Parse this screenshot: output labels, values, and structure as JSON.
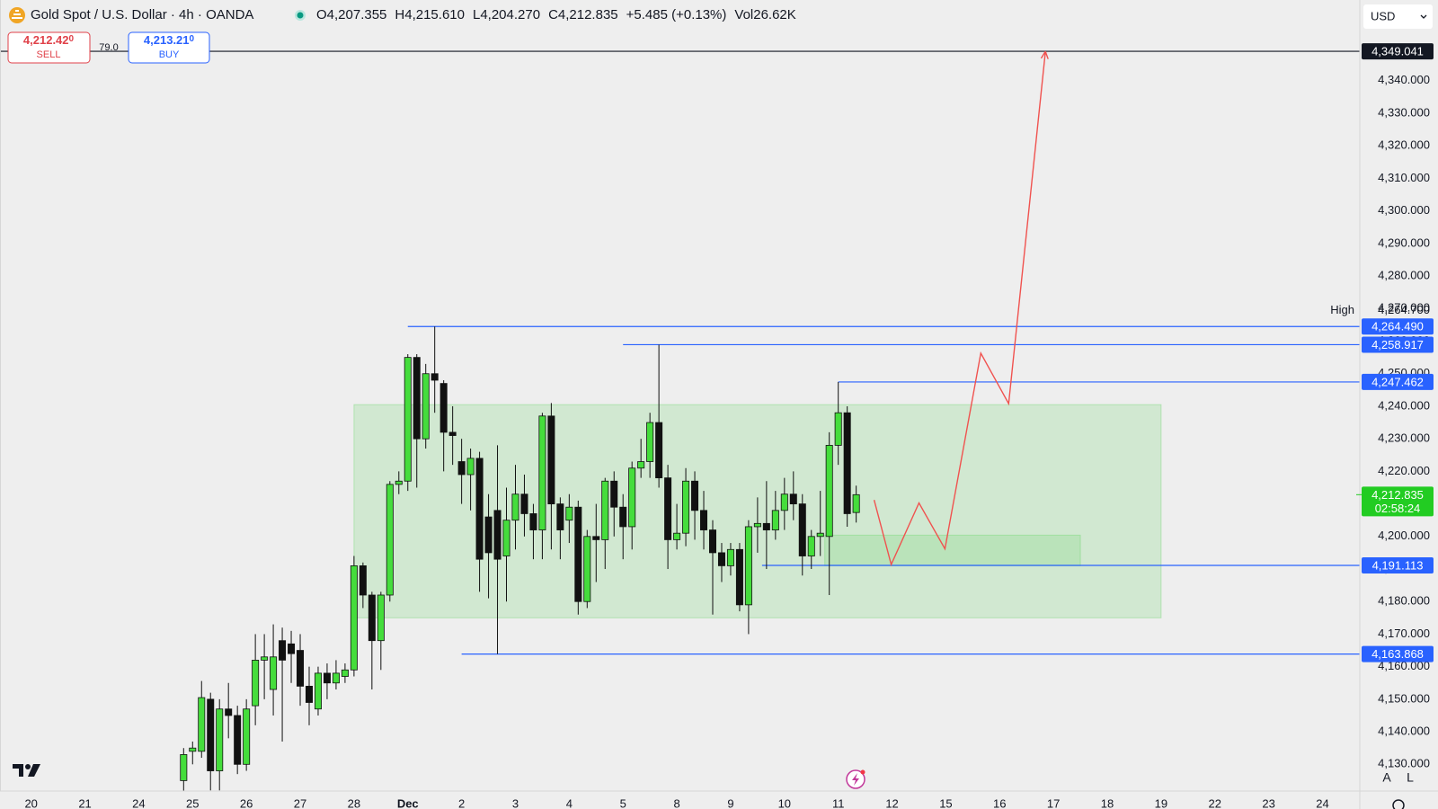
{
  "header": {
    "symbol": "Gold Spot / U.S. Dollar · 4h · OANDA",
    "open": "O4,207.355",
    "high": "H4,215.610",
    "low": "L4,204.270",
    "close": "C4,212.835",
    "change": "+5.485 (+0.13%)",
    "volume": "Vol26.62K"
  },
  "trade": {
    "sell_price": "4,212.42",
    "sell_fraction": "0",
    "sell_label": "SELL",
    "spread": "79.0",
    "buy_price": "4,213.21",
    "buy_fraction": "0",
    "buy_label": "BUY"
  },
  "currency": "USD",
  "footer": {
    "auto": "A",
    "log": "L"
  },
  "chart_data": {
    "type": "candlestick",
    "up_color": "#45dd3c",
    "down_color": "#111111",
    "grid": false,
    "x": [
      17,
      18,
      19,
      20,
      21,
      22,
      23,
      24,
      25,
      26,
      27,
      28,
      29,
      30,
      31,
      32,
      33,
      34,
      35,
      36,
      37,
      38,
      39,
      40,
      41,
      42,
      43,
      44,
      45,
      46,
      47,
      48,
      49,
      50,
      51,
      52,
      53,
      54,
      55,
      56,
      57,
      58,
      59,
      60,
      61,
      62,
      63,
      64,
      65,
      66,
      67,
      68,
      69,
      70,
      71,
      72,
      73,
      74,
      75,
      76,
      77,
      78,
      79,
      80,
      81,
      82,
      83,
      84,
      85,
      86,
      87,
      88,
      89,
      90,
      91,
      92
    ],
    "open": [
      4125,
      4134,
      4134,
      4150,
      4128,
      4147,
      4145,
      4130,
      4148,
      4162,
      4153,
      4168,
      4167,
      4165,
      4154,
      4147,
      4158,
      4155,
      4157,
      4159,
      4191,
      4182,
      4168,
      4182,
      4216,
      4217,
      4255,
      4230,
      4250,
      4247,
      4232,
      4223,
      4219,
      4224,
      4206,
      4208,
      4194,
      4205,
      4213,
      4207,
      4202,
      4237,
      4210,
      4205,
      4209,
      4180,
      4200,
      4199,
      4217,
      4209,
      4203,
      4221,
      4223,
      4235,
      4218,
      4199,
      4201,
      4217,
      4208,
      4202,
      4195,
      4191,
      4196,
      4179,
      4203,
      4204,
      4202,
      4208,
      4213,
      4210,
      4194,
      4200,
      4200,
      4228,
      4238,
      4207.355
    ],
    "high": [
      4135,
      4137,
      4155.6,
      4152,
      4150,
      4155,
      4148,
      4150,
      4170,
      4170,
      4173,
      4172,
      4171,
      4170,
      4160,
      4160,
      4161,
      4162,
      4161,
      4194,
      4192,
      4183,
      4183,
      4217,
      4220,
      4256,
      4256,
      4253,
      4264.49,
      4248,
      4240,
      4230,
      4227,
      4226,
      4213,
      4228,
      4215,
      4222,
      4219,
      4210,
      4238,
      4241,
      4212,
      4213,
      4211,
      4202,
      4210,
      4218,
      4220,
      4213,
      4223,
      4230,
      4238,
      4258.917,
      4222,
      4210,
      4221,
      4220,
      4214,
      4205,
      4198,
      4198,
      4198,
      4205,
      4212,
      4217,
      4214,
      4218,
      4220,
      4213,
      4202,
      4214,
      4232,
      4247.462,
      4240,
      4215.61
    ],
    "low": [
      4118,
      4130,
      4132,
      4122,
      4122,
      4138,
      4127,
      4128,
      4142,
      4150,
      4145,
      4137,
      4155,
      4148,
      4142,
      4145,
      4150,
      4153,
      4155,
      4157,
      4178,
      4153,
      4159,
      4180,
      4213,
      4214,
      4215,
      4227,
      4238,
      4220,
      4222,
      4210,
      4208,
      4183,
      4181,
      4163.868,
      4180,
      4196,
      4200,
      4193,
      4193,
      4196,
      4193,
      4198,
      4176,
      4178,
      4186,
      4190,
      4200,
      4193,
      4196,
      4218,
      4218,
      4215,
      4190,
      4196,
      4197,
      4199,
      4196,
      4176,
      4186,
      4188,
      4177,
      4170,
      4195,
      4190,
      4199,
      4202,
      4205,
      4188,
      4190,
      4194,
      4182,
      4222,
      4203,
      4204.27
    ],
    "close": [
      4133,
      4135,
      4150.5,
      4128,
      4147,
      4145,
      4130,
      4147,
      4162,
      4163,
      4163,
      4162,
      4164,
      4154,
      4149,
      4158,
      4155,
      4158,
      4159,
      4191,
      4182,
      4168,
      4182,
      4216,
      4217,
      4255,
      4230,
      4250,
      4248,
      4232,
      4231,
      4219,
      4224,
      4193,
      4195,
      4193,
      4205,
      4213,
      4207,
      4202,
      4237,
      4210,
      4202,
      4209,
      4180,
      4200,
      4199,
      4217,
      4209,
      4203,
      4221,
      4223,
      4235,
      4218,
      4199,
      4201,
      4217,
      4208,
      4202,
      4195,
      4191,
      4196,
      4179,
      4203,
      4204,
      4202,
      4208,
      4213,
      4210,
      4194,
      4200,
      4201,
      4228,
      4238,
      4207,
      4212.835
    ],
    "xlim": [
      -3.476,
      148.16
    ],
    "ylim": [
      4121.8,
      4364.8
    ],
    "xticks": [
      {
        "value": 0,
        "label": "20"
      },
      {
        "value": 6,
        "label": "21"
      },
      {
        "value": 12,
        "label": "24"
      },
      {
        "value": 18,
        "label": "25"
      },
      {
        "value": 24,
        "label": "26"
      },
      {
        "value": 30,
        "label": "27"
      },
      {
        "value": 36,
        "label": "28"
      },
      {
        "value": 42,
        "label": "Dec"
      },
      {
        "value": 48,
        "label": "2"
      },
      {
        "value": 54,
        "label": "3"
      },
      {
        "value": 60,
        "label": "4"
      },
      {
        "value": 66,
        "label": "5"
      },
      {
        "value": 72,
        "label": "8"
      },
      {
        "value": 78,
        "label": "9"
      },
      {
        "value": 84,
        "label": "10"
      },
      {
        "value": 90,
        "label": "11"
      },
      {
        "value": 96,
        "label": "12"
      },
      {
        "value": 102,
        "label": "15"
      },
      {
        "value": 108,
        "label": "16"
      },
      {
        "value": 114,
        "label": "17"
      },
      {
        "value": 120,
        "label": "18"
      },
      {
        "value": 126,
        "label": "19"
      },
      {
        "value": 132,
        "label": "22"
      },
      {
        "value": 138,
        "label": "23"
      },
      {
        "value": 144,
        "label": "24"
      }
    ],
    "yticks": [
      {
        "value": 4130,
        "label": "4,130.000"
      },
      {
        "value": 4140,
        "label": "4,140.000"
      },
      {
        "value": 4150,
        "label": "4,150.000"
      },
      {
        "value": 4160,
        "label": "4,160.000"
      },
      {
        "value": 4170,
        "label": "4,170.000"
      },
      {
        "value": 4180,
        "label": "4,180.000"
      },
      {
        "value": 4190,
        "label": "4,190.000"
      },
      {
        "value": 4200,
        "label": "4,200.000"
      },
      {
        "value": 4210,
        "label": "4,210.000"
      },
      {
        "value": 4220,
        "label": "4,220.000"
      },
      {
        "value": 4230,
        "label": "4,230.000"
      },
      {
        "value": 4240,
        "label": "4,240.000"
      },
      {
        "value": 4250,
        "label": "4,250.000"
      },
      {
        "value": 4260,
        "label": "4,260.000"
      },
      {
        "value": 4270,
        "label": "4,270.000"
      },
      {
        "value": 4280,
        "label": "4,280.000"
      },
      {
        "value": 4290,
        "label": "4,290.000"
      },
      {
        "value": 4300,
        "label": "4,300.000"
      },
      {
        "value": 4310,
        "label": "4,310.000"
      },
      {
        "value": 4320,
        "label": "4,320.000"
      },
      {
        "value": 4330,
        "label": "4,330.000"
      },
      {
        "value": 4340,
        "label": "4,340.000"
      }
    ],
    "zones": [
      {
        "x": [
          36,
          126
        ],
        "y": [
          4175,
          4240.5
        ],
        "color": "#5fd35f"
      },
      {
        "x": [
          88.5,
          117
        ],
        "y": [
          4191,
          4200.4
        ],
        "color": "#5fd35f"
      }
    ],
    "hlines": [
      {
        "value": 4349.041,
        "label": "4,349.041",
        "color": "#131722"
      },
      {
        "value": 4264.49,
        "label": "4,264.490",
        "color": "#2962ff",
        "from": 42
      },
      {
        "value": 4258.917,
        "label": "4,258.917",
        "color": "#2962ff",
        "from": 66
      },
      {
        "value": 4247.462,
        "label": "4,247.462",
        "color": "#2962ff",
        "from": 90
      },
      {
        "value": 4191.113,
        "label": "4,191.113",
        "color": "#2962ff",
        "from": 81.5
      },
      {
        "value": 4163.868,
        "label": "4,163.868",
        "color": "#2962ff",
        "from": 48
      }
    ],
    "high_marker": {
      "label": "High",
      "value": 4264.7,
      "value_label": "4,264.700"
    },
    "current": {
      "value": 4212.835,
      "label": "4,212.835",
      "countdown": "02:58:24",
      "color": "#22cc22"
    },
    "projection": {
      "color": "#f0524f",
      "x": [
        94,
        95.9,
        99,
        101.9,
        105.9,
        109,
        113.1
      ],
      "y": [
        4211.2,
        4191.4,
        4210.3,
        4196.2,
        4256.3,
        4240.8,
        4349
      ]
    }
  }
}
